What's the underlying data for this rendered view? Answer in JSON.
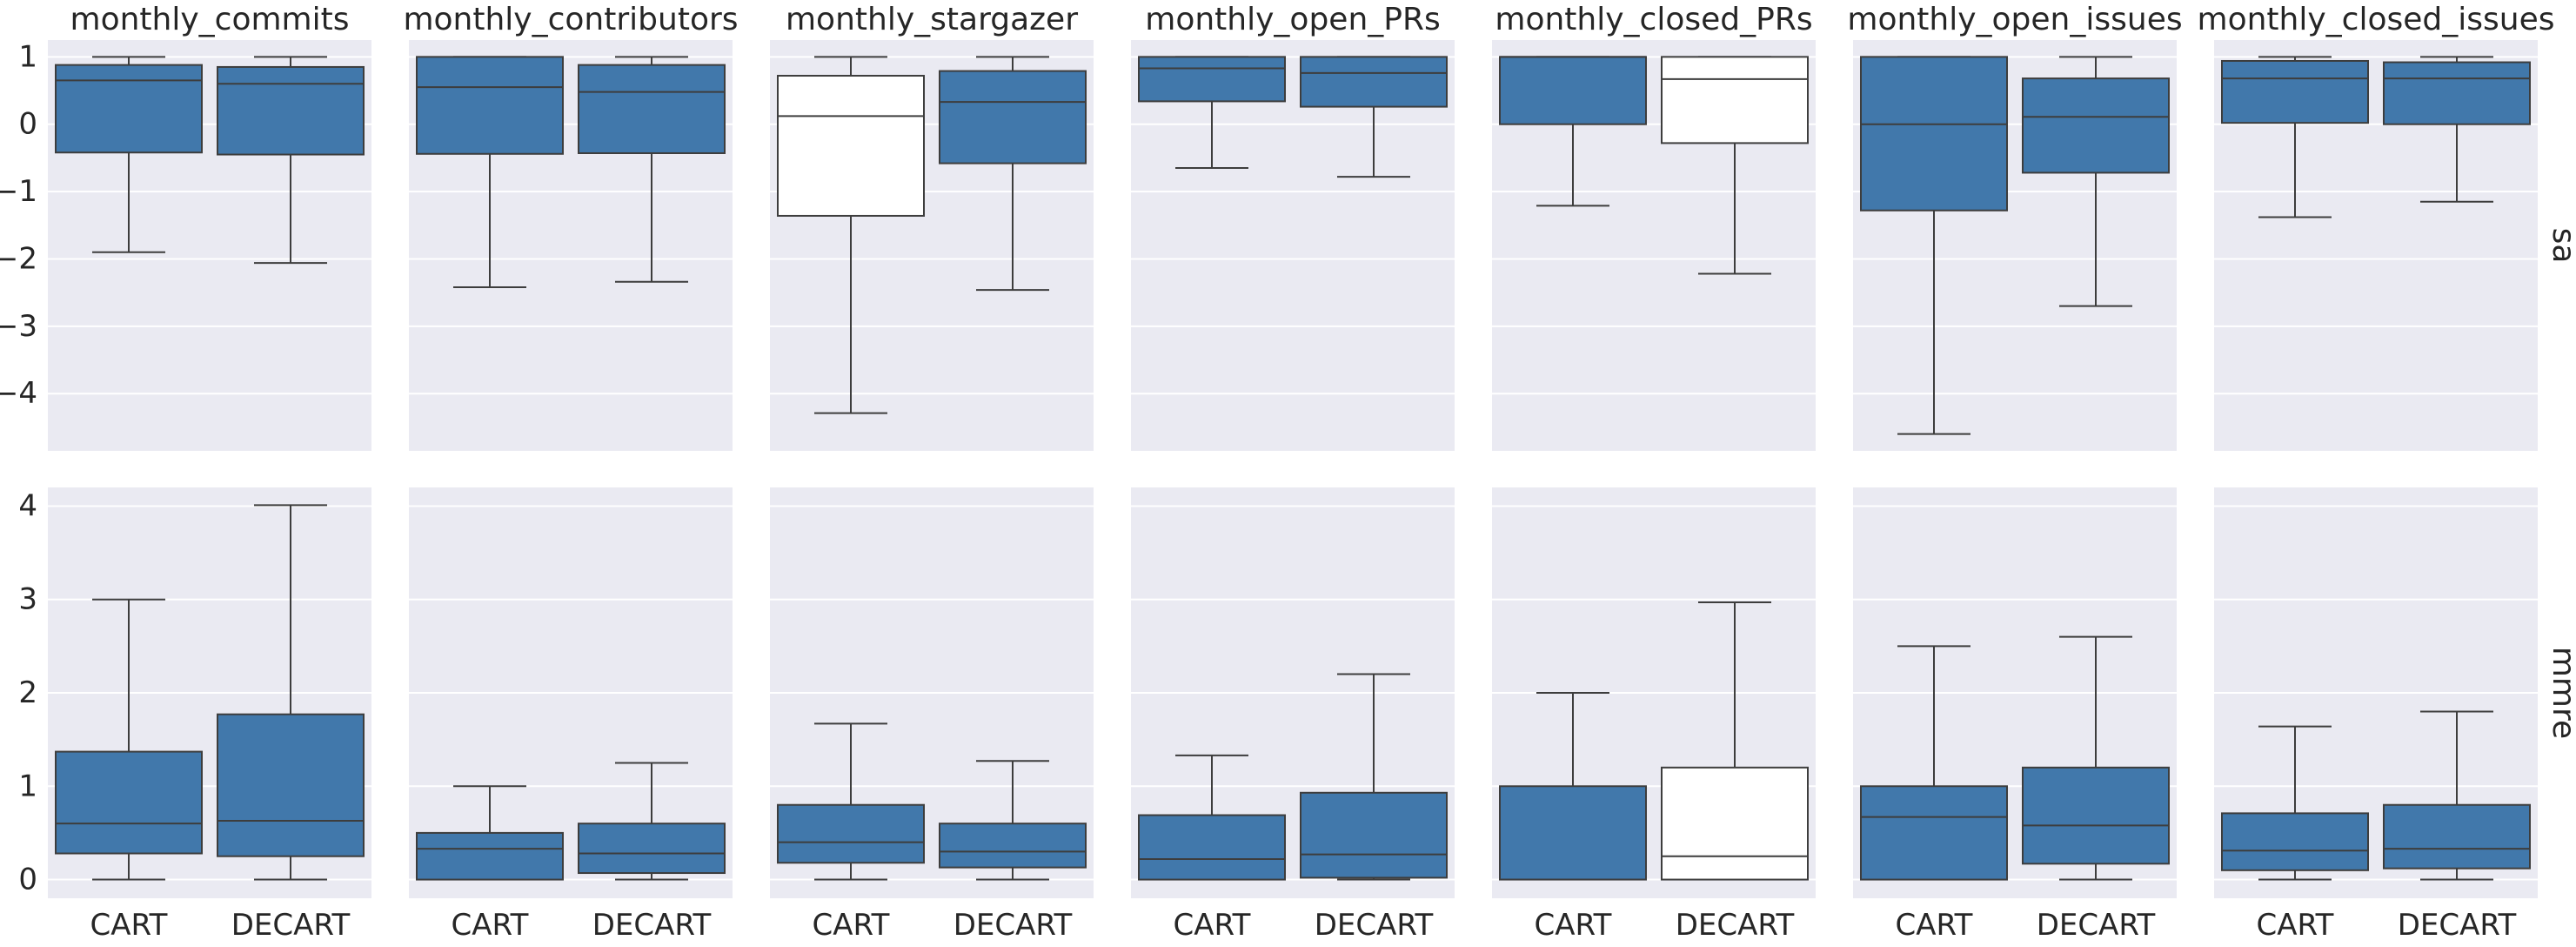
{
  "chart_data": {
    "type": "box",
    "categories": [
      "CART",
      "DECART"
    ],
    "columns": [
      "monthly_commits",
      "monthly_contributors",
      "monthly_stargazer",
      "monthly_open_PRs",
      "monthly_closed_PRs",
      "monthly_open_issues",
      "monthly_closed_issues"
    ],
    "rows": [
      {
        "label": "sa",
        "ylim": [
          -4.85,
          1.25
        ],
        "yticks": [
          {
            "v": 1,
            "label": "1"
          },
          {
            "v": 0,
            "label": "0"
          },
          {
            "v": -1,
            "label": "−1"
          },
          {
            "v": -2,
            "label": "−2"
          },
          {
            "v": -3,
            "label": "−3"
          },
          {
            "v": -4,
            "label": "−4"
          }
        ],
        "panels": [
          {
            "boxes": [
              {
                "category": "CART",
                "whislo": -1.9,
                "q1": -0.42,
                "med": 0.65,
                "q3": 0.88,
                "whishi": 1.0,
                "fill": "#4178ab"
              },
              {
                "category": "DECART",
                "whislo": -2.06,
                "q1": -0.45,
                "med": 0.6,
                "q3": 0.85,
                "whishi": 1.0,
                "fill": "#4178ab"
              }
            ]
          },
          {
            "boxes": [
              {
                "category": "CART",
                "whislo": -2.42,
                "q1": -0.44,
                "med": 0.55,
                "q3": 1.0,
                "whishi": 1.0,
                "fill": "#4178ab"
              },
              {
                "category": "DECART",
                "whislo": -2.34,
                "q1": -0.43,
                "med": 0.48,
                "q3": 0.88,
                "whishi": 1.0,
                "fill": "#4178ab"
              }
            ]
          },
          {
            "boxes": [
              {
                "category": "CART",
                "whislo": -4.29,
                "q1": -1.36,
                "med": 0.12,
                "q3": 0.72,
                "whishi": 1.0,
                "fill": "#ffffff"
              },
              {
                "category": "DECART",
                "whislo": -2.46,
                "q1": -0.58,
                "med": 0.33,
                "q3": 0.79,
                "whishi": 1.0,
                "fill": "#4178ab"
              }
            ]
          },
          {
            "boxes": [
              {
                "category": "CART",
                "whislo": -0.65,
                "q1": 0.34,
                "med": 0.83,
                "q3": 1.0,
                "whishi": 1.0,
                "fill": "#4178ab"
              },
              {
                "category": "DECART",
                "whislo": -0.78,
                "q1": 0.26,
                "med": 0.76,
                "q3": 1.0,
                "whishi": 1.0,
                "fill": "#4178ab"
              }
            ]
          },
          {
            "boxes": [
              {
                "category": "CART",
                "whislo": -1.21,
                "q1": 0.0,
                "med": 1.0,
                "q3": 1.0,
                "whishi": 1.0,
                "fill": "#4178ab"
              },
              {
                "category": "DECART",
                "whislo": -2.22,
                "q1": -0.28,
                "med": 0.67,
                "q3": 1.0,
                "whishi": 1.0,
                "fill": "#ffffff"
              }
            ]
          },
          {
            "boxes": [
              {
                "category": "CART",
                "whislo": -4.6,
                "q1": -1.28,
                "med": 0.0,
                "q3": 1.0,
                "whishi": 1.0,
                "fill": "#4178ab"
              },
              {
                "category": "DECART",
                "whislo": -2.7,
                "q1": -0.72,
                "med": 0.11,
                "q3": 0.68,
                "whishi": 1.0,
                "fill": "#4178ab"
              }
            ]
          },
          {
            "boxes": [
              {
                "category": "CART",
                "whislo": -1.38,
                "q1": 0.02,
                "med": 0.68,
                "q3": 0.94,
                "whishi": 1.0,
                "fill": "#4178ab"
              },
              {
                "category": "DECART",
                "whislo": -1.15,
                "q1": 0.0,
                "med": 0.68,
                "q3": 0.92,
                "whishi": 1.0,
                "fill": "#4178ab"
              }
            ]
          }
        ]
      },
      {
        "label": "mmre",
        "ylim": [
          -0.2,
          4.2
        ],
        "yticks": [
          {
            "v": 4,
            "label": "4"
          },
          {
            "v": 3,
            "label": "3"
          },
          {
            "v": 2,
            "label": "2"
          },
          {
            "v": 1,
            "label": "1"
          },
          {
            "v": 0,
            "label": "0"
          }
        ],
        "panels": [
          {
            "boxes": [
              {
                "category": "CART",
                "whislo": 0.0,
                "q1": 0.28,
                "med": 0.6,
                "q3": 1.37,
                "whishi": 3.0,
                "fill": "#4178ab"
              },
              {
                "category": "DECART",
                "whislo": 0.0,
                "q1": 0.25,
                "med": 0.63,
                "q3": 1.77,
                "whishi": 4.01,
                "fill": "#4178ab"
              }
            ]
          },
          {
            "boxes": [
              {
                "category": "CART",
                "whislo": 0.0,
                "q1": 0.0,
                "med": 0.33,
                "q3": 0.5,
                "whishi": 1.0,
                "fill": "#4178ab"
              },
              {
                "category": "DECART",
                "whislo": 0.0,
                "q1": 0.07,
                "med": 0.28,
                "q3": 0.6,
                "whishi": 1.25,
                "fill": "#4178ab"
              }
            ]
          },
          {
            "boxes": [
              {
                "category": "CART",
                "whislo": 0.0,
                "q1": 0.18,
                "med": 0.4,
                "q3": 0.8,
                "whishi": 1.67,
                "fill": "#4178ab"
              },
              {
                "category": "DECART",
                "whislo": 0.0,
                "q1": 0.13,
                "med": 0.3,
                "q3": 0.6,
                "whishi": 1.27,
                "fill": "#4178ab"
              }
            ]
          },
          {
            "boxes": [
              {
                "category": "CART",
                "whislo": 0.0,
                "q1": 0.0,
                "med": 0.22,
                "q3": 0.69,
                "whishi": 1.33,
                "fill": "#4178ab"
              },
              {
                "category": "DECART",
                "whislo": 0.0,
                "q1": 0.02,
                "med": 0.27,
                "q3": 0.93,
                "whishi": 2.2,
                "fill": "#4178ab"
              }
            ]
          },
          {
            "boxes": [
              {
                "category": "CART",
                "whislo": 0.0,
                "q1": 0.0,
                "med": 0.0,
                "q3": 1.0,
                "whishi": 2.0,
                "fill": "#4178ab"
              },
              {
                "category": "DECART",
                "whislo": 0.0,
                "q1": 0.0,
                "med": 0.25,
                "q3": 1.2,
                "whishi": 2.97,
                "fill": "#ffffff"
              }
            ]
          },
          {
            "boxes": [
              {
                "category": "CART",
                "whislo": 0.0,
                "q1": 0.0,
                "med": 0.67,
                "q3": 1.0,
                "whishi": 2.5,
                "fill": "#4178ab"
              },
              {
                "category": "DECART",
                "whislo": 0.0,
                "q1": 0.17,
                "med": 0.58,
                "q3": 1.2,
                "whishi": 2.6,
                "fill": "#4178ab"
              }
            ]
          },
          {
            "boxes": [
              {
                "category": "CART",
                "whislo": 0.0,
                "q1": 0.1,
                "med": 0.31,
                "q3": 0.71,
                "whishi": 1.64,
                "fill": "#4178ab"
              },
              {
                "category": "DECART",
                "whislo": 0.0,
                "q1": 0.12,
                "med": 0.33,
                "q3": 0.8,
                "whishi": 1.8,
                "fill": "#4178ab"
              }
            ]
          }
        ]
      }
    ],
    "grid": true,
    "colors": {
      "box": "#4178ab",
      "highlight": "#ffffff",
      "panel": "#eaeaf2",
      "grid": "#ffffff",
      "line": "#3d3d3d"
    }
  }
}
